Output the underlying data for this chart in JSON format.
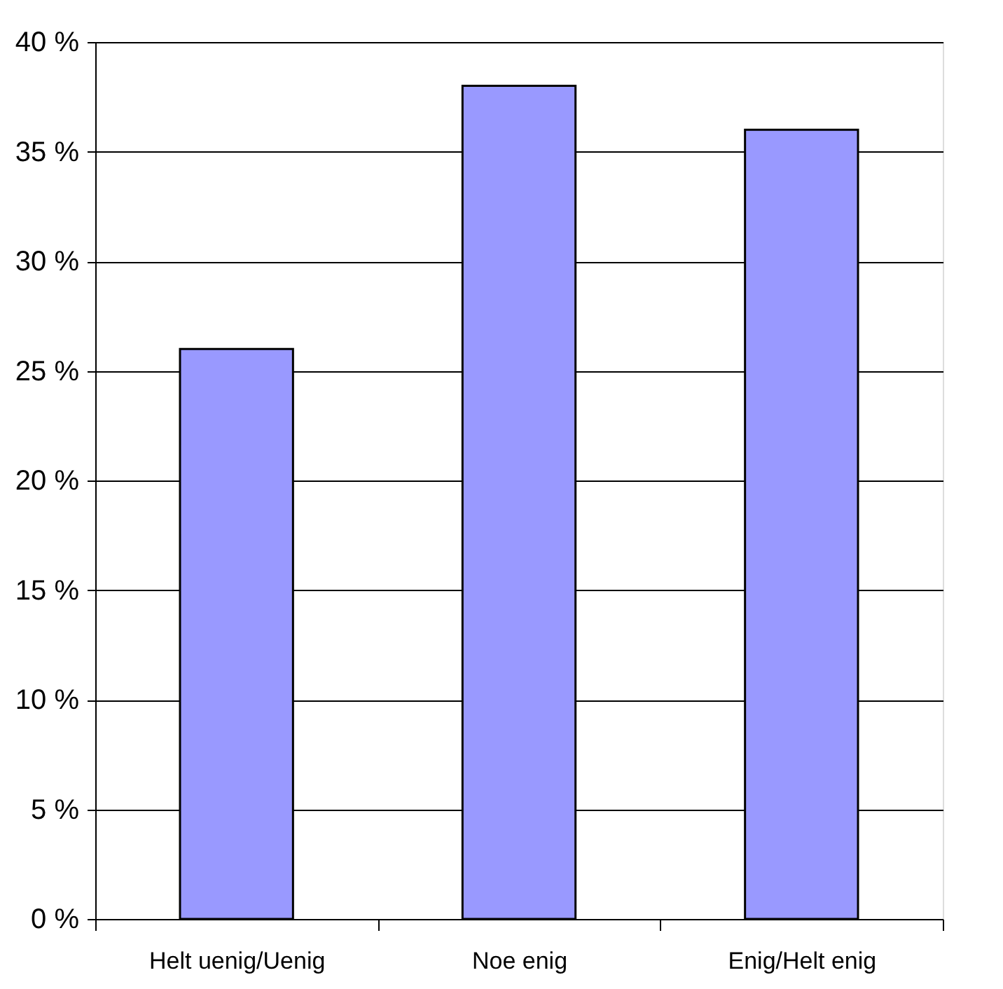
{
  "chart_data": {
    "type": "bar",
    "categories": [
      "Helt uenig/Uenig",
      "Noe enig",
      "Enig/Helt enig"
    ],
    "values": [
      26,
      38,
      36
    ],
    "color": "#9999ff",
    "ylim": [
      0,
      40
    ],
    "yticks": [
      {
        "value": 0,
        "label": "0 %"
      },
      {
        "value": 5,
        "label": "5 %"
      },
      {
        "value": 10,
        "label": "10 %"
      },
      {
        "value": 15,
        "label": "15 %"
      },
      {
        "value": 20,
        "label": "20 %"
      },
      {
        "value": 25,
        "label": "25 %"
      },
      {
        "value": 30,
        "label": "30 %"
      },
      {
        "value": 35,
        "label": "35 %"
      },
      {
        "value": 40,
        "label": "40 %"
      }
    ],
    "grid": "y"
  }
}
